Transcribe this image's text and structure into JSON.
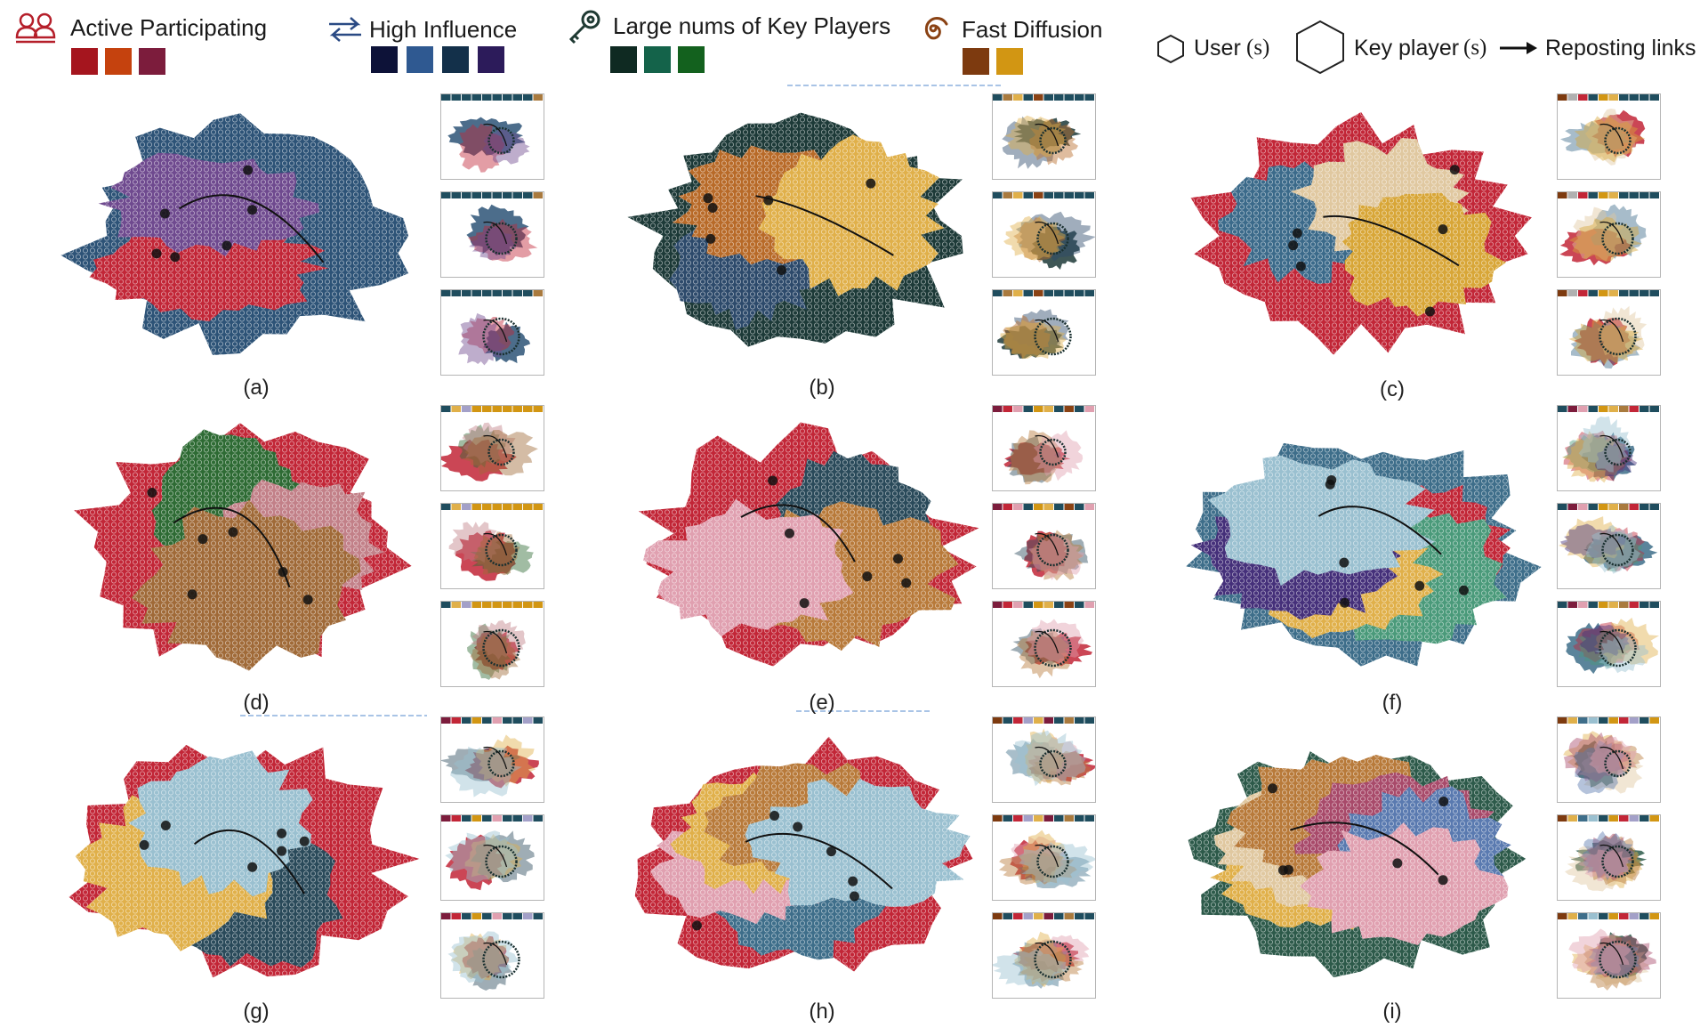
{
  "legend": {
    "groups": [
      {
        "label": "Active Participating",
        "icon": "users-icon",
        "icon_color": "#b51f2a",
        "swatches": [
          "#a5151e",
          "#c5420e",
          "#7c1c3c"
        ]
      },
      {
        "label": "High Influence",
        "icon": "exchange-arrows-icon",
        "icon_color": "#2a4a84",
        "swatches": [
          "#0d1238",
          "#2f5991",
          "#13304a",
          "#2c1b5a"
        ]
      },
      {
        "label": "Large nums of Key Players",
        "icon": "key-icon",
        "icon_color": "#1f3a33",
        "swatches": [
          "#0f2a22",
          "#14634a",
          "#13611e"
        ]
      },
      {
        "label": "Fast Diffusion",
        "icon": "spiral-icon",
        "icon_color": "#8a4214",
        "swatches": [
          "#7d3a0f",
          "#d29613"
        ]
      }
    ],
    "shape_key": {
      "user_label": "User",
      "user_suffix": "(s)",
      "key_player_label": "Key player",
      "key_player_suffix": "(s)",
      "links_label": "Reposting links"
    }
  },
  "panels": [
    {
      "id": "a",
      "caption": "(a)",
      "colors": [
        "#2d5377",
        "#c22637",
        "#6f4a8f"
      ],
      "thumb_bar": [
        "#1f4d5e",
        "#1f4d5e",
        "#1f4d5e",
        "#1f4d5e",
        "#1f4d5e",
        "#1f4d5e",
        "#1f4d5e",
        "#1f4d5e",
        "#1f4d5e",
        "#a97a3e"
      ]
    },
    {
      "id": "b",
      "caption": "(b)",
      "colors": [
        "#1d3a38",
        "#2d4a6b",
        "#b86a28",
        "#e0b04a"
      ],
      "thumb_bar": [
        "#1f4d5e",
        "#a97a3e",
        "#e0b04a",
        "#1f4d5e",
        "#8a4214",
        "#1f4d5e",
        "#1f4d5e",
        "#1f4d5e",
        "#1f4d5e",
        "#1f4d5e"
      ]
    },
    {
      "id": "c",
      "caption": "(c)",
      "colors": [
        "#c22637",
        "#3b6a8a",
        "#e0c8a0",
        "#d8a637"
      ],
      "thumb_bar": [
        "#7d3a0f",
        "#b0b0b0",
        "#c22637",
        "#1f4d5e",
        "#d29613",
        "#e0b04a",
        "#1f4d5e",
        "#1f4d5e",
        "#1f4d5e",
        "#1f4d5e"
      ]
    },
    {
      "id": "d",
      "caption": "(d)",
      "colors": [
        "#c22637",
        "#2e6b34",
        "#c28088",
        "#a06a38"
      ],
      "thumb_bar": [
        "#1f4d5e",
        "#e0b04a",
        "#a3a0c8",
        "#d29613",
        "#d29613",
        "#d29613",
        "#d29613",
        "#d29613",
        "#d29613",
        "#d29613"
      ]
    },
    {
      "id": "e",
      "caption": "(e)",
      "colors": [
        "#c22637",
        "#2a4a5a",
        "#b87a3a",
        "#e0a0b0"
      ],
      "thumb_bar": [
        "#7c1c3c",
        "#c22637",
        "#e0a0b0",
        "#1f4d5e",
        "#d29613",
        "#e0b04a",
        "#1f4d5e",
        "#8a4214",
        "#1f4d5e",
        "#e0a0b0"
      ]
    },
    {
      "id": "f",
      "caption": "(f)",
      "colors": [
        "#3e6e8a",
        "#c22637",
        "#4a9a7a",
        "#e0b04a",
        "#45307a",
        "#9ac0d0"
      ],
      "thumb_bar": [
        "#1f4d5e",
        "#7c1c3c",
        "#e0a0b0",
        "#1f4d5e",
        "#d29613",
        "#e0b04a",
        "#a97a3e",
        "#c22637",
        "#1f4d5e",
        "#1f4d5e"
      ]
    },
    {
      "id": "g",
      "caption": "(g)",
      "colors": [
        "#c22637",
        "#2a4a5a",
        "#e0b04a",
        "#9ac0d0"
      ],
      "thumb_bar": [
        "#7c1c3c",
        "#c22637",
        "#1f4d5e",
        "#d29613",
        "#1f4d5e",
        "#e0a0b0",
        "#1f4d5e",
        "#1f4d5e",
        "#a3a0c8",
        "#1f4d5e"
      ]
    },
    {
      "id": "h",
      "caption": "(h)",
      "colors": [
        "#c22637",
        "#3e6e8a",
        "#e0a0b0",
        "#e0b04a",
        "#b87a3a",
        "#9ac0d0"
      ],
      "thumb_bar": [
        "#7d3a0f",
        "#1f4d5e",
        "#c22637",
        "#a3a0c8",
        "#e0b04a",
        "#7c1c3c",
        "#1f4d5e",
        "#a97a3e",
        "#1f4d5e",
        "#1f4d5e"
      ]
    },
    {
      "id": "i",
      "caption": "(i)",
      "colors": [
        "#2d5a4a",
        "#e0b04a",
        "#e0c8a0",
        "#b87a3a",
        "#a84a6a",
        "#5a7ab0",
        "#e0a0b0"
      ],
      "thumb_bar": [
        "#7d3a0f",
        "#e0b04a",
        "#3e6e8a",
        "#9ac0d0",
        "#1f4d5e",
        "#d29613",
        "#c22637",
        "#a3a0c8",
        "#1f4d5e",
        "#d29613"
      ]
    }
  ]
}
